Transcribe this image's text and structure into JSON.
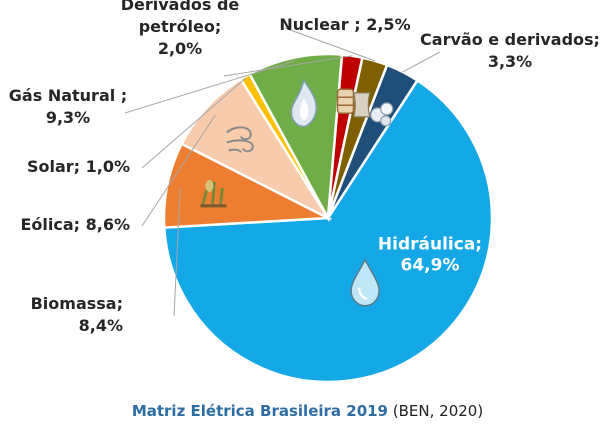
{
  "chart_data": {
    "type": "pie",
    "slices": [
      {
        "key": "hidraulica",
        "label_lines": [
          "Hidráulica;",
          "64,9%"
        ],
        "value": 64.9,
        "color": "#14a8e6",
        "icon": "water-drop-icon"
      },
      {
        "key": "biomassa",
        "label_lines": [
          "Biomassa;",
          "8,4%"
        ],
        "value": 8.4,
        "color": "#ed7d31",
        "icon": "biomass-plant-icon"
      },
      {
        "key": "eolica",
        "label_lines": [
          "Eólica; 8,6%"
        ],
        "value": 8.6,
        "color": "#f8cbad",
        "icon": "wind-icon"
      },
      {
        "key": "solar",
        "label_lines": [
          "Solar; 1,0%"
        ],
        "value": 1.0,
        "color": "#ffc000",
        "icon": ""
      },
      {
        "key": "gas_natural",
        "label_lines": [
          "Gás Natural ;",
          "9,3%"
        ],
        "value": 9.3,
        "color": "#70ad47",
        "icon": "gas-flame-icon"
      },
      {
        "key": "derivados_petroleo",
        "label_lines": [
          "Derivados de",
          "petróleo;",
          "2,0%"
        ],
        "value": 2.0,
        "color": "#c00000",
        "icon": "oil-barrel-icon"
      },
      {
        "key": "nuclear",
        "label_lines": [
          "Nuclear ; 2,5%"
        ],
        "value": 2.5,
        "color": "#7f6000",
        "icon": "nuclear-icon"
      },
      {
        "key": "carvao",
        "label_lines": [
          "Carvão e derivados;",
          "3,3%"
        ],
        "value": 3.3,
        "color": "#1f4e79",
        "icon": "coal-icon"
      }
    ],
    "legend": "none"
  },
  "caption": {
    "title": "Matriz Elétrica Brasileira 2019",
    "source": " (BEN, 2020)"
  }
}
